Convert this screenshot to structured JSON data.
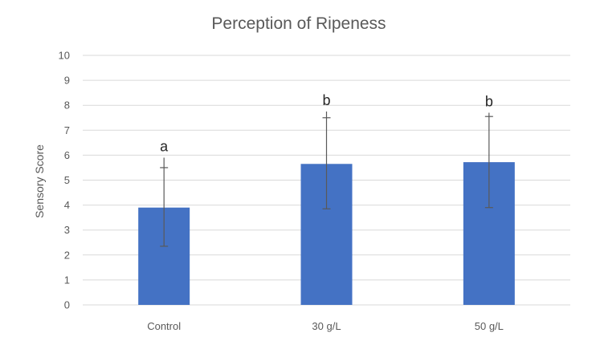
{
  "chart_data": {
    "type": "bar",
    "title": "Perception of Ripeness",
    "xlabel": "",
    "ylabel": "Sensory Score",
    "categories": [
      "Control",
      "30 g/L",
      "50 g/L"
    ],
    "series": [
      {
        "values": [
          3.9,
          5.65,
          5.72
        ],
        "error_upper": [
          5.9,
          7.75,
          7.7
        ],
        "error_lower": [
          2.35,
          3.85,
          3.9
        ],
        "error_cap": [
          5.5,
          7.5,
          7.55
        ],
        "significance_labels": [
          "a",
          "b",
          "b"
        ]
      }
    ],
    "ylim": [
      0,
      10
    ],
    "yticks": [
      "0",
      "1",
      "2",
      "3",
      "4",
      "5",
      "6",
      "7",
      "8",
      "9",
      "10"
    ],
    "grid": true,
    "legend": "none",
    "colors": {
      "bar": "#4472C4",
      "grid": "#D9D9D9",
      "error_bar": "#595959",
      "text": "#595959"
    }
  }
}
